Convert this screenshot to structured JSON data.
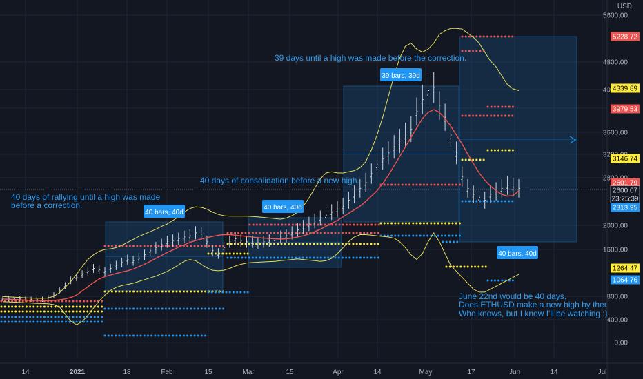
{
  "chart_data": {
    "type": "line",
    "symbol": "ETHUSD",
    "currency": "USD",
    "x_ticks": [
      "14",
      "2021",
      "18",
      "Feb",
      "15",
      "Mar",
      "15",
      "Apr",
      "14",
      "May",
      "17",
      "Jun",
      "14",
      "Jul"
    ],
    "y_ticks": [
      "5600.00",
      "4800.00",
      "4000.00",
      "3600.00",
      "3200.00",
      "2800.00",
      "2000.00",
      "1600.00",
      "800.00",
      "400.00",
      "0.00"
    ],
    "ylim": [
      -200,
      5800
    ],
    "price_labels": [
      {
        "value": "5228.72",
        "color": "#f05350"
      },
      {
        "value": "4339.89",
        "color": "#ffeb3b"
      },
      {
        "value": "3979.53",
        "color": "#f05350"
      },
      {
        "value": "3146.74",
        "color": "#ffeb3b"
      },
      {
        "value": "2601.79",
        "color": "#f05350"
      },
      {
        "value": "2600.07",
        "color": "#ffffff"
      },
      {
        "value": "23:25:39",
        "color": "#ffffff"
      },
      {
        "value": "2313.95",
        "color": "#2196f3"
      },
      {
        "value": "1264.47",
        "color": "#ffeb3b"
      },
      {
        "value": "1064.76",
        "color": "#2196f3"
      }
    ],
    "range_labels": [
      "40 bars, 40d",
      "40 bars, 40d",
      "39 bars, 39d",
      "40 bars, 40d"
    ],
    "annotations": [
      "39 days until a high was made before the correction.",
      "40 days of consolidation before a new high.",
      "40 days of rallying until a high was made",
      "before a correction.",
      "June 22nd would be 40 days.",
      "Does ETHUSD make a new high by then?",
      "Who knows, but I know I'll be watching :)"
    ],
    "series": [
      {
        "values": [
          735,
          730,
          725,
          720,
          715,
          712,
          710,
          708,
          705,
          710,
          720,
          735,
          760,
          800,
          870,
          940,
          1010,
          1070,
          1110,
          1140,
          1165,
          1190,
          1210,
          1240,
          1280,
          1320,
          1370,
          1420,
          1470,
          1520,
          1560,
          1610,
          1650,
          1690,
          1720,
          1745,
          1770,
          1790,
          1810,
          1820,
          1820,
          1810,
          1800,
          1790,
          1780,
          1770,
          1760,
          1755,
          1750,
          1745,
          1750,
          1760,
          1780,
          1800,
          1830,
          1870,
          1910,
          1960,
          2010,
          2060,
          2120,
          2180,
          2240,
          2300,
          2380,
          2470,
          2560,
          2680,
          2820,
          2980,
          3140,
          3300,
          3460,
          3620,
          3780,
          3880,
          3930,
          3880,
          3780,
          3650,
          3500,
          3350,
          3180,
          3020,
          2860,
          2740,
          2640,
          2560,
          2500,
          2470,
          2480,
          2560
        ]
      },
      {
        "values": [
          775,
          770,
          765,
          760,
          755,
          750,
          745,
          745,
          750,
          780,
          840,
          930,
          1030,
          1150,
          1280,
          1400,
          1480,
          1540,
          1570,
          1580,
          1600,
          1640,
          1690,
          1740,
          1790,
          1830,
          1870,
          1910,
          1960,
          2000,
          2060,
          2120,
          2200,
          2260,
          2290,
          2280,
          2250,
          2200,
          2160,
          2140,
          2130,
          2130,
          2130,
          2130,
          2125,
          2120,
          2110,
          2100,
          2090,
          2080,
          2100,
          2140,
          2200,
          2300,
          2440,
          2600,
          2760,
          2860,
          2880,
          2860,
          2860,
          2880,
          2900,
          2950,
          3050,
          3250,
          3500,
          3800,
          4150,
          4500,
          4800,
          5000,
          5050,
          4950,
          4900,
          4950,
          5050,
          5200,
          5260,
          5300,
          5300,
          5290,
          5220,
          5150,
          5050,
          4900,
          4750,
          4650,
          4500,
          4350,
          4280,
          4250
        ]
      },
      {
        "values": [
          690,
          685,
          680,
          675,
          670,
          665,
          660,
          658,
          655,
          640,
          600,
          480,
          360,
          300,
          350,
          460,
          580,
          700,
          800,
          880,
          930,
          960,
          980,
          1000,
          1030,
          1060,
          1090,
          1120,
          1160,
          1200,
          1250,
          1310,
          1370,
          1400,
          1380,
          1320,
          1260,
          1220,
          1210,
          1220,
          1250,
          1290,
          1320,
          1340,
          1350,
          1355,
          1360,
          1365,
          1370,
          1380,
          1390,
          1400,
          1410,
          1400,
          1390,
          1380,
          1370,
          1380,
          1420,
          1500,
          1600,
          1700,
          1780,
          1820,
          1820,
          1810,
          1800,
          1790,
          1780,
          1760,
          1700,
          1600,
          1480,
          1400,
          1500,
          1700,
          1850,
          1700,
          1500,
          1300,
          1200,
          1100,
          1000,
          900,
          850,
          850,
          900,
          950,
          1000,
          1050,
          1100,
          1150
        ]
      },
      {
        "values": [
          745,
          738,
          740,
          735,
          732,
          728,
          726,
          730,
          760,
          800,
          880,
          960,
          1050,
          1100,
          1150,
          1200,
          1250,
          1230,
          1200,
          1250,
          1300,
          1350,
          1400,
          1380,
          1420,
          1480,
          1550,
          1600,
          1650,
          1700,
          1720,
          1750,
          1780,
          1800,
          1850,
          1830,
          1700,
          1550,
          1500,
          1600,
          1700,
          1750,
          1720,
          1700,
          1700,
          1680,
          1700,
          1720,
          1750,
          1780,
          1800,
          1850,
          1900,
          1950,
          2000,
          2050,
          2100,
          2150,
          2200,
          2250,
          2300,
          2400,
          2500,
          2600,
          2700,
          2850,
          3000,
          3100,
          3200,
          3300,
          3400,
          3500,
          3600,
          3900,
          4100,
          4250,
          4300,
          4000,
          3800,
          3500,
          3200,
          2800,
          2600,
          2500,
          2450,
          2400,
          2500,
          2550,
          2600,
          2650,
          2620,
          2600
        ]
      }
    ]
  }
}
